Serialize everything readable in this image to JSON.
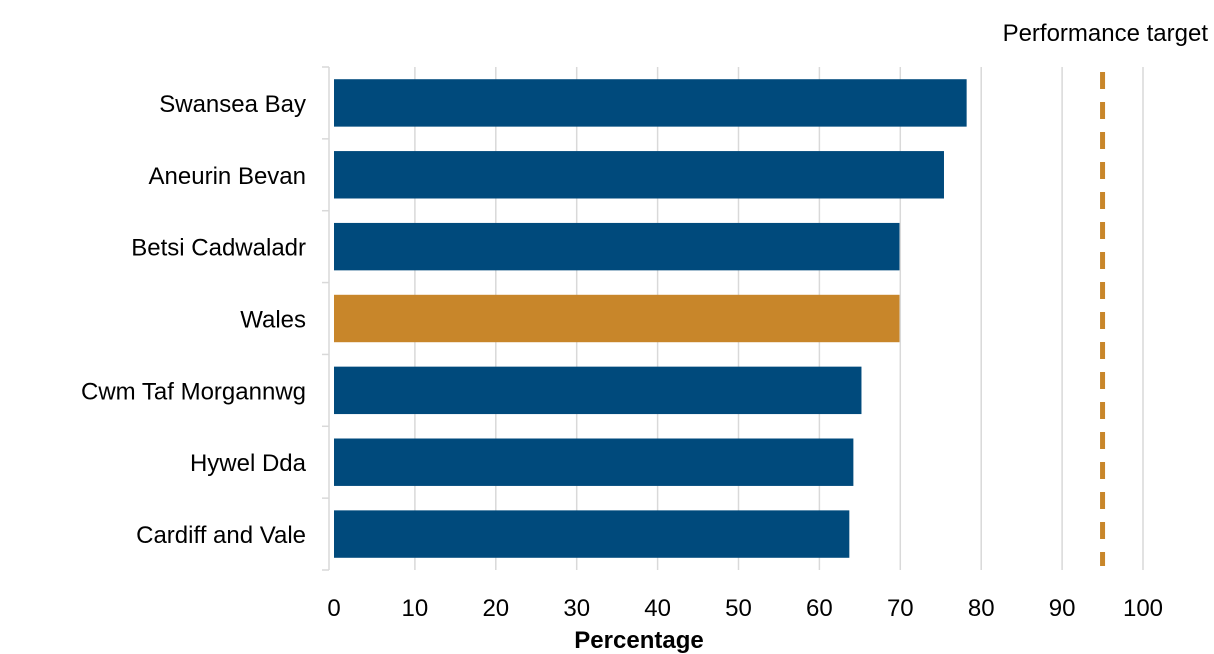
{
  "chart_data": {
    "type": "bar",
    "orientation": "horizontal",
    "categories": [
      "Swansea Bay",
      "Aneurin Bevan",
      "Betsi Cadwaladr",
      "Wales",
      "Cwm Taf Morgannwg",
      "Hywel Dda",
      "Cardiff and Vale"
    ],
    "values": [
      78.2,
      75.4,
      69.9,
      69.9,
      65.2,
      64.2,
      63.7
    ],
    "highlight_category": "Wales",
    "xlabel": "Percentage",
    "ylabel": "",
    "xlim": [
      0,
      100
    ],
    "x_ticks": [
      "0",
      "10",
      "20",
      "30",
      "40",
      "50",
      "60",
      "70",
      "80",
      "90",
      "100"
    ],
    "grid": "vertical",
    "reference_line": {
      "label": "Performance target",
      "value": 95,
      "style": "dashed"
    },
    "colors": {
      "bar": "#004a7c",
      "highlight": "#c8862a",
      "target_line": "#c8862a",
      "grid": "#d9d9d9"
    }
  }
}
